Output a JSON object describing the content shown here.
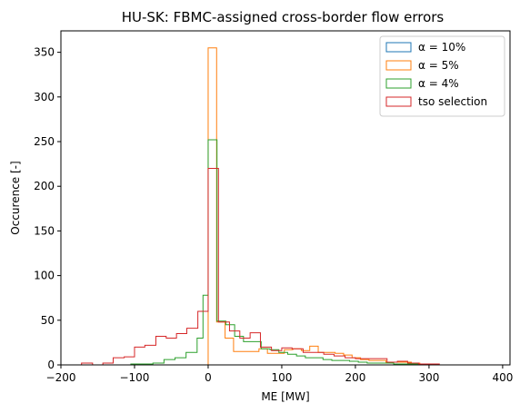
{
  "chart_data": {
    "type": "histogram",
    "title": "HU-SK: FBMC-assigned cross-border flow errors",
    "xlabel": "ME [MW]",
    "ylabel": "Occurence [-]",
    "xlim": [
      -200,
      410
    ],
    "ylim": [
      0,
      374
    ],
    "xticks": [
      "−200",
      "−100",
      "0",
      "100",
      "200",
      "300",
      "400"
    ],
    "xtick_values": [
      -200,
      -100,
      0,
      100,
      200,
      300,
      400
    ],
    "yticks": [
      "0",
      "50",
      "100",
      "150",
      "200",
      "250",
      "300",
      "350"
    ],
    "ytick_values": [
      0,
      50,
      100,
      150,
      200,
      250,
      300,
      350
    ],
    "grid": false,
    "legend_position": "top-right",
    "series": [
      {
        "name": "α = 10%",
        "color": "#1f77b4",
        "x_edges": [
          0,
          10
        ],
        "counts": [
          0
        ]
      },
      {
        "name": "α = 5%",
        "color": "#ff7f0e",
        "x_edges": [
          0,
          11.5,
          23,
          34.5,
          46,
          57.5,
          69,
          80.5,
          92,
          103.5,
          115,
          126.5,
          138,
          149.5,
          161,
          172.5,
          184,
          195.5,
          207,
          218.5,
          230,
          241.5,
          253,
          264.5,
          276,
          287.5,
          299
        ],
        "counts": [
          355,
          48,
          30,
          15,
          15,
          15,
          18,
          13,
          13,
          17,
          18,
          16,
          21,
          14,
          14,
          13,
          11,
          8,
          6,
          5,
          5,
          3,
          3,
          3,
          2,
          0
        ]
      },
      {
        "name": "α = 4%",
        "color": "#2ca02c",
        "x_edges": [
          -105,
          -90,
          -75,
          -60,
          -45,
          -30,
          -15,
          -7,
          0,
          12,
          24,
          36,
          48,
          60,
          72,
          84,
          96,
          108,
          120,
          132,
          144,
          156,
          168,
          180,
          192,
          204,
          216,
          228,
          240,
          252,
          264,
          276,
          288,
          300
        ],
        "counts": [
          1,
          1,
          2,
          6,
          8,
          14,
          30,
          78,
          252,
          49,
          45,
          32,
          26,
          26,
          18,
          17,
          14,
          12,
          10,
          8,
          8,
          6,
          5,
          5,
          4,
          3,
          2,
          2,
          2,
          1,
          1,
          1,
          0
        ]
      },
      {
        "name": "tso selection",
        "color": "#d62728",
        "x_edges": [
          -172,
          -157,
          -143,
          -129,
          -114,
          -100,
          -86,
          -71,
          -57,
          -43,
          -29,
          -14,
          0,
          14,
          29,
          43,
          57,
          71,
          86,
          100,
          114,
          129,
          143,
          157,
          171,
          186,
          200,
          214,
          229,
          243,
          257,
          271,
          286,
          300,
          314,
          329
        ],
        "counts": [
          2,
          0,
          2,
          8,
          9,
          20,
          22,
          32,
          30,
          35,
          41,
          60,
          220,
          48,
          38,
          30,
          36,
          20,
          16,
          19,
          18,
          14,
          14,
          12,
          10,
          8,
          7,
          7,
          7,
          3,
          4,
          2,
          1,
          1,
          0
        ]
      }
    ]
  }
}
